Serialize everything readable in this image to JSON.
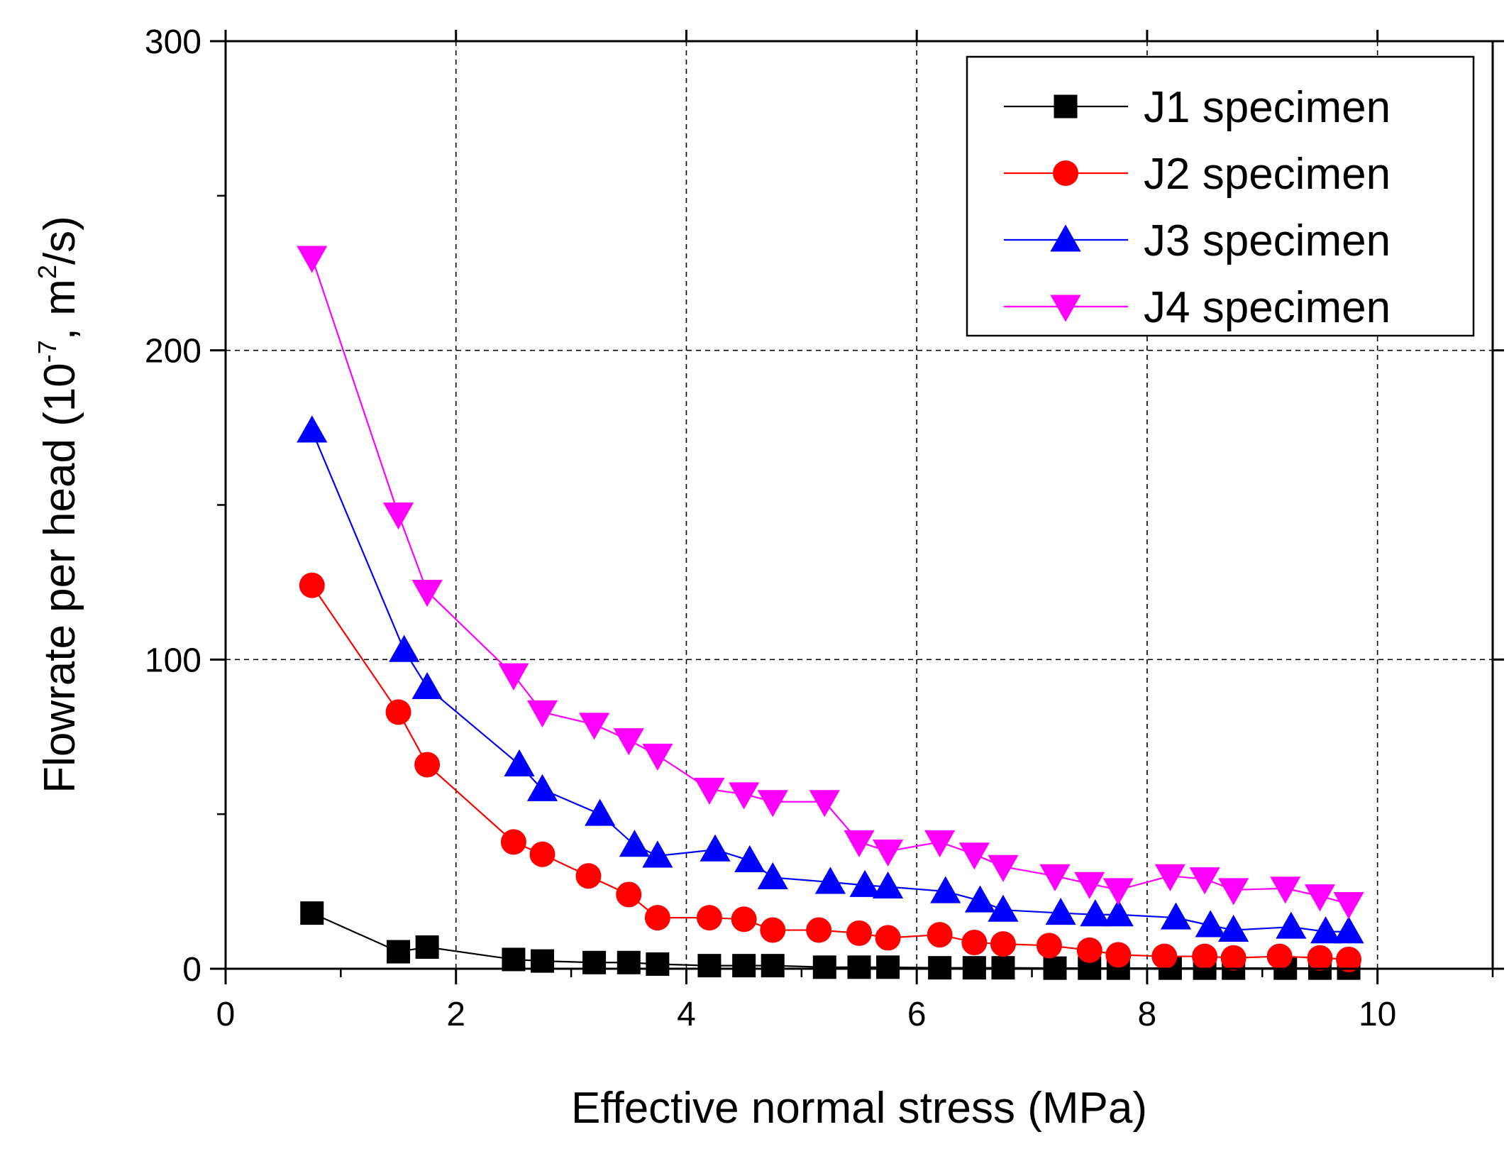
{
  "chart_data": {
    "type": "line",
    "title": "",
    "xlabel": "Effective normal stress (MPa)",
    "ylabel": {
      "prefix": "Flowrate per head (10",
      "exp": "-7",
      "middle": ", m",
      "unit_exp": "2",
      "suffix": "/s)"
    },
    "xlim": [
      0,
      11
    ],
    "ylim": [
      0,
      300
    ],
    "x_ticks": [
      0,
      2,
      4,
      6,
      8,
      10
    ],
    "y_ticks": [
      0,
      100,
      200,
      300
    ],
    "x_tick_labels": [
      "0",
      "2",
      "4",
      "6",
      "8",
      "10"
    ],
    "y_tick_labels": [
      "0",
      "100",
      "200",
      "300"
    ],
    "grid": "dashed at labelled ticks",
    "legend_position": "top-right",
    "series": [
      {
        "name": "J1 specimen",
        "color": "#000000",
        "marker": "square",
        "x": [
          0.75,
          1.5,
          1.75,
          2.5,
          2.75,
          3.2,
          3.5,
          3.75,
          4.2,
          4.5,
          4.75,
          5.2,
          5.5,
          5.75,
          6.2,
          6.5,
          6.75,
          7.2,
          7.5,
          7.75,
          8.2,
          8.5,
          8.75,
          9.2,
          9.5,
          9.75
        ],
        "y": [
          18,
          5.5,
          7,
          3,
          2.5,
          2,
          2,
          1.5,
          1,
          1,
          1,
          0.5,
          0.5,
          0.5,
          0.3,
          0.3,
          0.3,
          0.2,
          0.2,
          0.2,
          0.2,
          0.2,
          0.2,
          0.2,
          0.2,
          0.2
        ]
      },
      {
        "name": "J2 specimen",
        "color": "#ff0000",
        "marker": "circle",
        "x": [
          0.75,
          1.5,
          1.75,
          2.5,
          2.75,
          3.15,
          3.5,
          3.75,
          4.2,
          4.5,
          4.75,
          5.15,
          5.5,
          5.75,
          6.2,
          6.5,
          6.75,
          7.15,
          7.5,
          7.75,
          8.15,
          8.5,
          8.75,
          9.15,
          9.5,
          9.75
        ],
        "y": [
          124,
          83,
          66,
          41,
          37,
          30,
          24,
          16.5,
          16.5,
          16,
          12.5,
          12.5,
          11.5,
          10,
          11,
          8.5,
          8,
          7.5,
          6,
          4.5,
          4,
          4,
          3.5,
          4,
          3.5,
          3
        ]
      },
      {
        "name": "J3 specimen",
        "color": "#0000ff",
        "marker": "triangle-up",
        "x": [
          0.75,
          1.55,
          1.75,
          2.55,
          2.75,
          3.25,
          3.55,
          3.75,
          4.25,
          4.55,
          4.75,
          5.25,
          5.55,
          5.75,
          6.25,
          6.55,
          6.75,
          7.25,
          7.55,
          7.75,
          8.25,
          8.55,
          8.75,
          9.25,
          9.55,
          9.75
        ],
        "y": [
          174,
          103,
          91,
          66,
          58,
          50,
          40,
          36.5,
          38.5,
          35,
          29.5,
          28,
          27,
          26.5,
          25,
          22,
          19,
          18,
          17.5,
          17.5,
          16.5,
          14,
          12.5,
          13.5,
          12,
          12
        ]
      },
      {
        "name": "J4 specimen",
        "color": "#ff00ff",
        "marker": "triangle-down",
        "x": [
          0.75,
          1.5,
          1.75,
          2.5,
          2.75,
          3.2,
          3.5,
          3.75,
          4.2,
          4.5,
          4.75,
          5.2,
          5.5,
          5.75,
          6.2,
          6.5,
          6.75,
          7.2,
          7.5,
          7.75,
          8.2,
          8.5,
          8.75,
          9.2,
          9.5,
          9.75
        ],
        "y": [
          230,
          147,
          122,
          95,
          83,
          79,
          74,
          69,
          58,
          56.5,
          54,
          54,
          41,
          38,
          41,
          37,
          33,
          30,
          27.5,
          25.5,
          30,
          29,
          25.5,
          26,
          23.5,
          21
        ]
      }
    ]
  }
}
